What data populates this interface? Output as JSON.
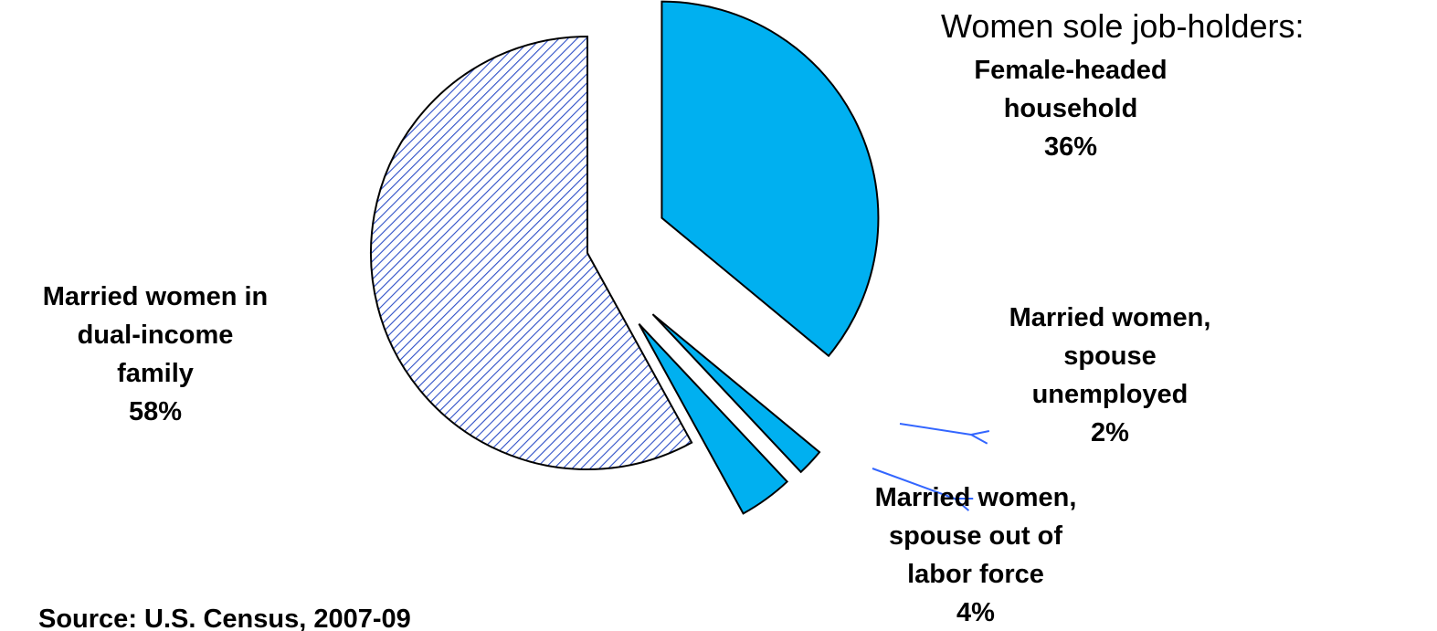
{
  "chart_data": {
    "type": "pie",
    "title": "Women sole job-holders:",
    "source": "Source: U.S. Census, 2007-09",
    "categories": [
      "Female-headed\nhousehold",
      "Married women,\nspouse\nunemployed",
      "Married women,\nspouse out of\nlabor force",
      "Married women in\ndual-income\nfamily"
    ],
    "values": [
      36,
      2,
      4,
      58
    ],
    "value_labels": [
      "36%",
      "2%",
      "4%",
      "58%"
    ],
    "colors": [
      "#00b0f0",
      "#00b0f0",
      "#00b0f0",
      "#2e4fc7"
    ],
    "hatched": [
      false,
      false,
      false,
      true
    ]
  }
}
